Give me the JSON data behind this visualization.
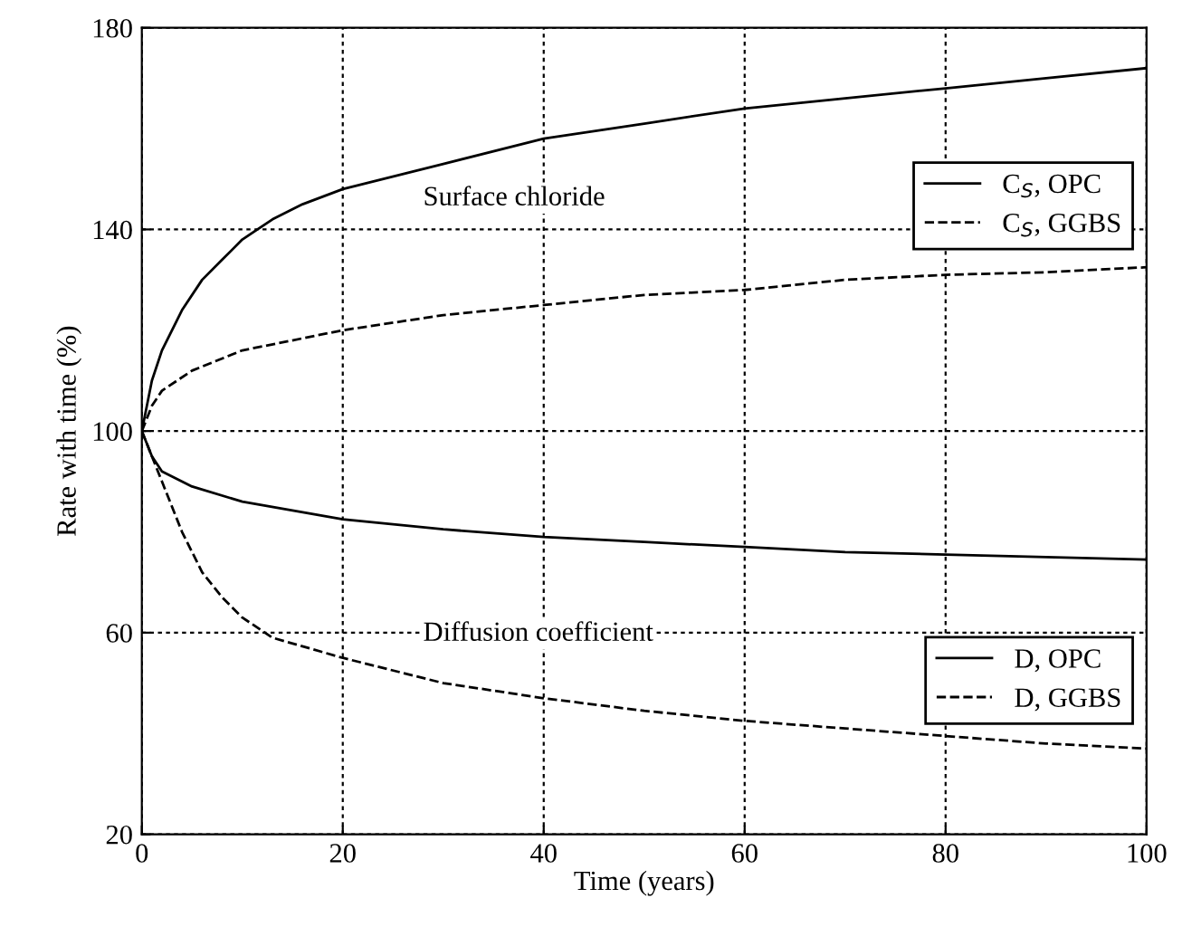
{
  "chart_data": {
    "type": "line",
    "xlabel": "Time (years)",
    "ylabel": "Rate with time (%)",
    "xlim": [
      0,
      100
    ],
    "xticks": [
      0,
      20,
      40,
      60,
      80,
      100
    ],
    "ylim": [
      20,
      180
    ],
    "yticks": [
      20,
      60,
      100,
      140,
      180
    ],
    "grid": true,
    "legend": "right",
    "marker": "none",
    "annotations": [
      "Surface chloride",
      "Diffusion coefficient"
    ],
    "series": [
      {
        "name": "C$_{S}$, OPC",
        "color": "#000000",
        "line_style": "solid",
        "x": [
          0,
          1,
          2,
          4,
          6,
          8,
          10,
          13,
          16,
          20,
          30,
          40,
          50,
          60,
          70,
          80,
          90,
          100
        ],
        "values": [
          100,
          110,
          116,
          124,
          130,
          134,
          138,
          142,
          145,
          148,
          153,
          158,
          161,
          164,
          166,
          168,
          170,
          172
        ]
      },
      {
        "name": "C$_{S}$, GGBS",
        "color": "#000000",
        "line_style": "dashed",
        "x": [
          0,
          1,
          2,
          5,
          10,
          20,
          30,
          40,
          50,
          60,
          70,
          80,
          90,
          100
        ],
        "values": [
          100,
          105,
          108,
          112,
          116,
          120,
          123,
          125,
          127,
          128,
          130,
          131,
          131.5,
          132.5
        ]
      },
      {
        "name": "D, OPC",
        "color": "#000000",
        "line_style": "solid",
        "x": [
          0,
          1,
          2,
          5,
          10,
          20,
          30,
          40,
          50,
          60,
          70,
          80,
          90,
          100
        ],
        "values": [
          100,
          95,
          92,
          89,
          86,
          82.5,
          80.5,
          79,
          78,
          77,
          76,
          75.5,
          75,
          74.5
        ]
      },
      {
        "name": "D, GGBS",
        "color": "#000000",
        "line_style": "dashed",
        "x": [
          0,
          2,
          4,
          6,
          8,
          10,
          13,
          20,
          30,
          40,
          50,
          60,
          70,
          80,
          90,
          100
        ],
        "values": [
          100,
          90,
          80,
          72,
          67,
          63,
          59,
          55,
          50,
          47,
          44.5,
          42.5,
          41,
          39.5,
          38,
          37
        ]
      }
    ]
  }
}
